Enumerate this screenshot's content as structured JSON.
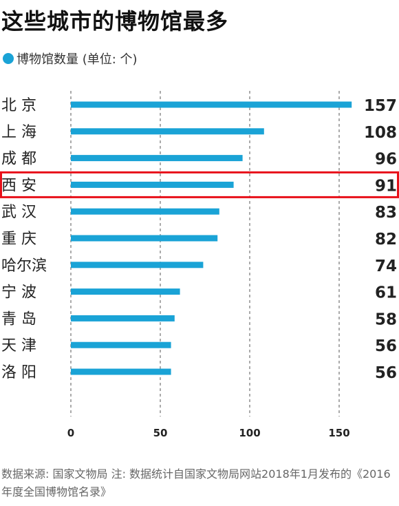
{
  "header": {
    "title": "这些城市的博物馆最多",
    "legend_label": "博物馆数量 (单位: 个)"
  },
  "footnote": "数据来源: 国家文物局 注: 数据统计自国家文物局网站2018年1月发布的《2016年度全国博物馆名录》",
  "colors": {
    "bar": "#1aa3d6",
    "highlight_border": "#e8111a",
    "grid": "#555555"
  },
  "chart_data": {
    "type": "bar",
    "orientation": "horizontal",
    "categories": [
      "北 京",
      "上 海",
      "成 都",
      "西 安",
      "武 汉",
      "重 庆",
      "哈尔滨",
      "宁 波",
      "青 岛",
      "天 津",
      "洛 阳"
    ],
    "values": [
      157,
      108,
      96,
      91,
      83,
      82,
      74,
      61,
      58,
      56,
      56
    ],
    "value_labels": [
      "157",
      "108",
      "96",
      "91",
      "83",
      "82",
      "74",
      "61",
      "58",
      "56",
      "56"
    ],
    "xticks": [
      "0",
      "50",
      "100",
      "150"
    ],
    "xtick_values": [
      0,
      50,
      100,
      150
    ],
    "xlim": [
      0,
      160
    ],
    "grid": "vertical-dashed",
    "highlighted_category": "西 安"
  }
}
